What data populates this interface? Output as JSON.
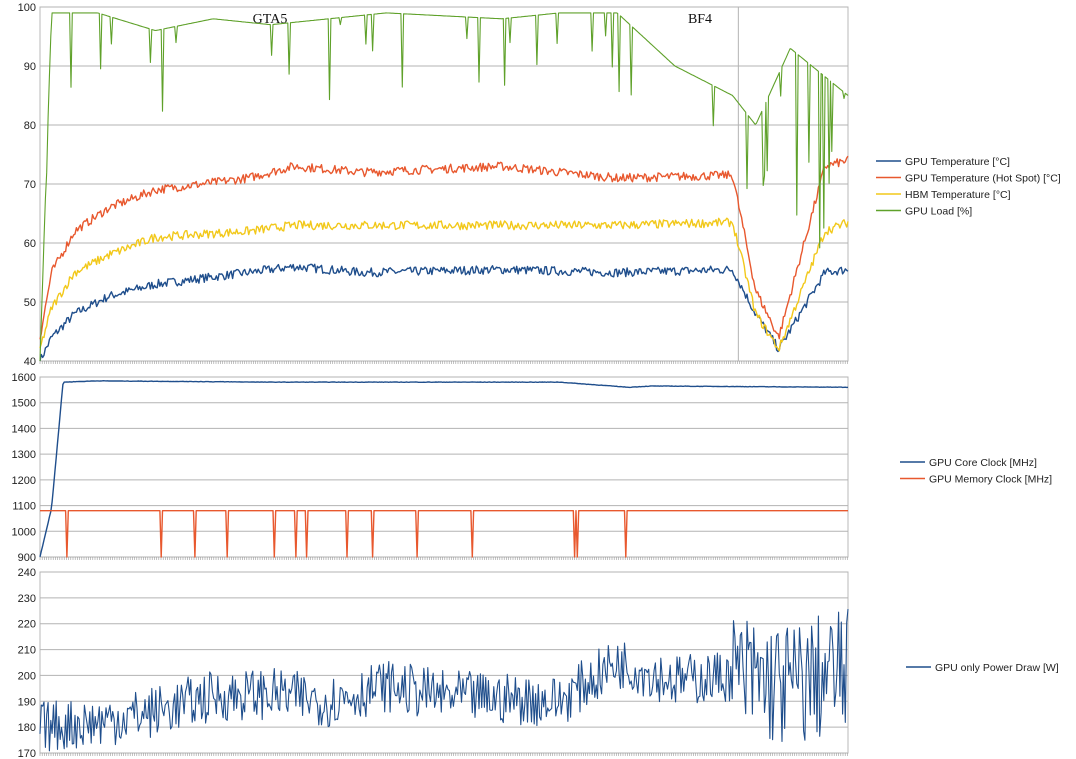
{
  "chart_data": [
    {
      "type": "line",
      "section_labels": [
        "GTA5",
        "BF4"
      ],
      "ylim": [
        40,
        100
      ],
      "yticks": [
        "40",
        "50",
        "60",
        "70",
        "80",
        "90",
        "100"
      ],
      "grid": true,
      "legend_position": "right",
      "series": [
        {
          "name": "GPU Temperature [°C]",
          "color": "#1f4e8c",
          "x": [
            0,
            1,
            3,
            6,
            10,
            18,
            22,
            28,
            40,
            50,
            60,
            62,
            64,
            68,
            70
          ],
          "values": [
            40,
            44,
            48,
            51,
            53,
            55,
            56,
            55,
            55.5,
            55,
            55.5,
            48,
            42,
            55,
            55.5
          ]
        },
        {
          "name": "GPU Temperature (Hot Spot) [°C]",
          "color": "#e8582e",
          "x": [
            0,
            1,
            3,
            6,
            10,
            18,
            22,
            28,
            40,
            50,
            60,
            62,
            64,
            68,
            70
          ],
          "values": [
            44,
            55,
            62,
            66,
            69,
            71,
            73,
            72,
            73,
            71,
            71.5,
            52,
            44,
            73,
            74
          ]
        },
        {
          "name": "HBM Temperature [°C]",
          "color": "#f2c81a",
          "x": [
            0,
            1,
            3,
            6,
            10,
            18,
            22,
            28,
            40,
            50,
            60,
            62,
            64,
            68,
            70
          ],
          "values": [
            42,
            49,
            55,
            58,
            61,
            62,
            63,
            63,
            63,
            63,
            63.5,
            48,
            42,
            62,
            63.5
          ]
        },
        {
          "name": "GPU Load [%]",
          "color": "#5fa12a",
          "x": [
            0,
            1,
            5,
            10,
            15,
            20,
            30,
            40,
            45,
            50,
            55,
            60,
            62,
            65,
            70
          ],
          "values": [
            40,
            99,
            99,
            96,
            98,
            97,
            99,
            98,
            99,
            99,
            90,
            85,
            80,
            93,
            85
          ]
        }
      ]
    },
    {
      "type": "line",
      "ylim": [
        900,
        1600
      ],
      "yticks": [
        "900",
        "1000",
        "1100",
        "1200",
        "1300",
        "1400",
        "1500",
        "1600"
      ],
      "grid": true,
      "legend_position": "right",
      "series": [
        {
          "name": "GPU Core Clock [MHz]",
          "color": "#1f4e8c",
          "x": [
            0,
            1,
            2,
            5,
            20,
            45,
            51,
            53,
            70
          ],
          "values": [
            900,
            1090,
            1580,
            1585,
            1580,
            1580,
            1560,
            1565,
            1560
          ]
        },
        {
          "name": "GPU Memory Clock [MHz]",
          "color": "#e8582e",
          "x": [
            0,
            1,
            5,
            60,
            70
          ],
          "values": [
            1080,
            1080,
            1080,
            1080,
            1080
          ]
        }
      ]
    },
    {
      "type": "line",
      "ylim": [
        170,
        240
      ],
      "yticks": [
        "170",
        "180",
        "190",
        "200",
        "210",
        "220",
        "230",
        "240"
      ],
      "grid": true,
      "legend_position": "right",
      "series": [
        {
          "name": "GPU only Power Draw [W]",
          "color": "#1f4e8c",
          "x": [
            0,
            5,
            10,
            15,
            20,
            25,
            30,
            35,
            40,
            45,
            50,
            55,
            60,
            65,
            70
          ],
          "values": [
            180,
            182,
            186,
            192,
            193,
            190,
            196,
            192,
            191,
            190,
            205,
            198,
            200,
            196,
            202
          ]
        }
      ]
    }
  ]
}
